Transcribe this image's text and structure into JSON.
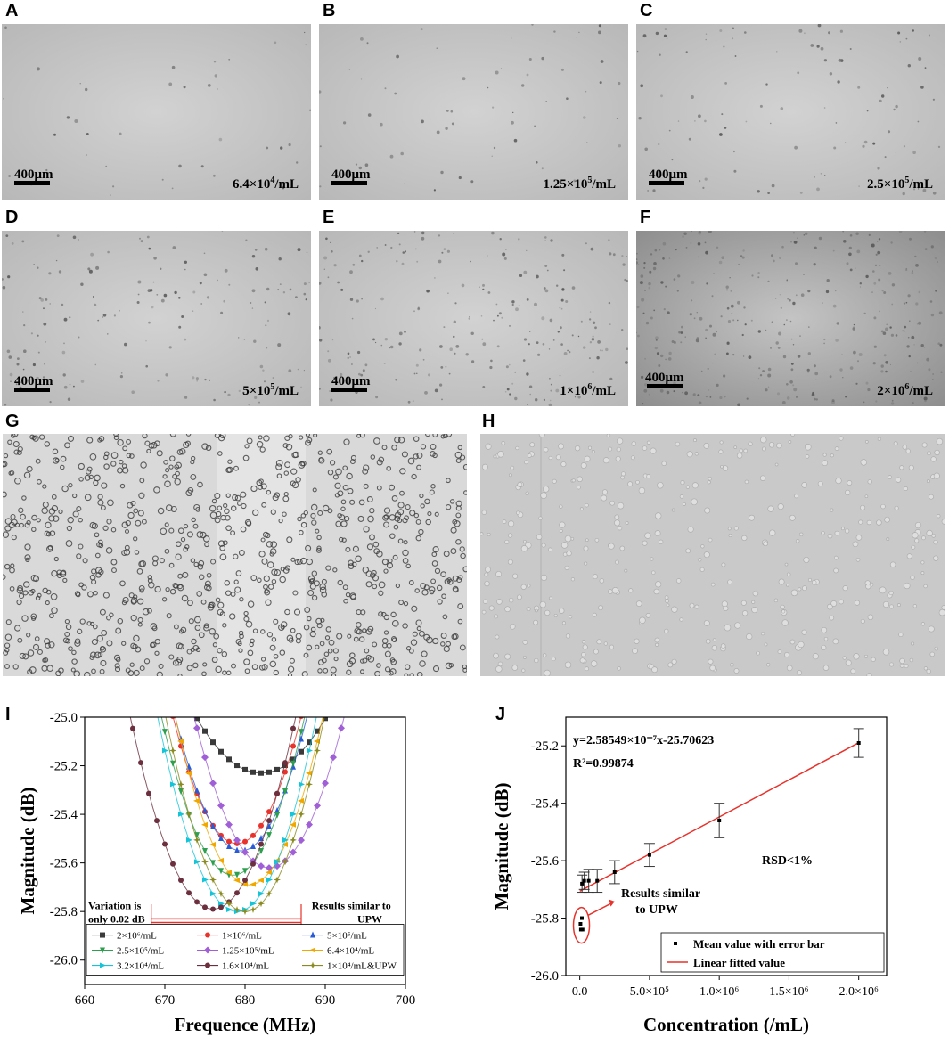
{
  "panels": {
    "A": {
      "label": "A",
      "scale": "400μm",
      "conc_base": "6.4×10",
      "conc_exp": "4",
      "conc_unit": "/mL"
    },
    "B": {
      "label": "B",
      "scale": "400μm",
      "conc_base": "1.25×10",
      "conc_exp": "5",
      "conc_unit": "/mL"
    },
    "C": {
      "label": "C",
      "scale": "400μm",
      "conc_base": "2.5×10",
      "conc_exp": "5",
      "conc_unit": "/mL"
    },
    "D": {
      "label": "D",
      "scale": "400μm",
      "conc_base": "5×10",
      "conc_exp": "5",
      "conc_unit": "/mL"
    },
    "E": {
      "label": "E",
      "scale": "400μm",
      "conc_base": "1×10",
      "conc_exp": "6",
      "conc_unit": "/mL"
    },
    "F": {
      "label": "F",
      "scale": "400μm",
      "conc_base": "2×10",
      "conc_exp": "6",
      "conc_unit": "/mL"
    },
    "G": {
      "label": "G"
    },
    "H": {
      "label": "H"
    },
    "I": {
      "label": "I"
    },
    "J": {
      "label": "J"
    }
  },
  "chart_data": [
    {
      "type": "line",
      "panel": "I",
      "xlabel": "Frequence (MHz)",
      "ylabel": "Magnitude (dB)",
      "xlim": [
        660,
        700
      ],
      "ylim": [
        -26.1,
        -25.0
      ],
      "xticks": [
        "660",
        "670",
        "680",
        "690",
        "700"
      ],
      "yticks": [
        "-25.0",
        "-25.2",
        "-25.4",
        "-25.6",
        "-25.8",
        "-26.0"
      ],
      "annotations": {
        "left": "Variation is only 0.02 dB",
        "right": "Results similar to UPW"
      },
      "series": [
        {
          "name": "2×10⁶/mL",
          "color": "#3a3a3a",
          "marker": "square",
          "x0": 682,
          "min": -25.23,
          "width": 12.5,
          "xrange": [
            668,
            695
          ]
        },
        {
          "name": "1×10⁶/mL",
          "color": "#e8322b",
          "marker": "circle",
          "x0": 679,
          "min": -25.52,
          "width": 8.2,
          "xrange": [
            663,
            695
          ]
        },
        {
          "name": "5×10⁵/mL",
          "color": "#2a5bd7",
          "marker": "triangle",
          "x0": 679.5,
          "min": -25.55,
          "width": 8.2,
          "xrange": [
            663,
            695
          ]
        },
        {
          "name": "2.5×10⁵/mL",
          "color": "#2e9e4f",
          "marker": "triangle-down",
          "x0": 678.5,
          "min": -25.65,
          "width": 8.2,
          "xrange": [
            662,
            695
          ]
        },
        {
          "name": "1.25×10⁵/mL",
          "color": "#a05fd6",
          "marker": "diamond",
          "x0": 683,
          "min": -25.62,
          "width": 8.8,
          "xrange": [
            665,
            698
          ]
        },
        {
          "name": "6.4×10⁴/mL",
          "color": "#f0a800",
          "marker": "triangle-left",
          "x0": 680.5,
          "min": -25.69,
          "width": 8.2,
          "xrange": [
            663,
            697
          ]
        },
        {
          "name": "3.2×10⁴/mL",
          "color": "#16c4d8",
          "marker": "triangle-right",
          "x0": 679,
          "min": -25.8,
          "width": 8.2,
          "xrange": [
            661,
            696
          ]
        },
        {
          "name": "1.6×10⁴/mL",
          "color": "#6b2f3e",
          "marker": "hexagon",
          "x0": 676,
          "min": -25.79,
          "width": 8.6,
          "xrange": [
            660,
            693
          ]
        },
        {
          "name": "1×10⁴/mL&UPW",
          "color": "#8a8a20",
          "marker": "star",
          "x0": 680,
          "min": -25.8,
          "width": 8.2,
          "xrange": [
            661,
            696
          ]
        }
      ]
    },
    {
      "type": "scatter",
      "panel": "J",
      "xlabel": "Concentration (/mL)",
      "ylabel": "Magnitude (dB)",
      "xlim": [
        -100000,
        2200000
      ],
      "ylim": [
        -26.0,
        -25.1
      ],
      "xticks": [
        0,
        500000,
        1000000,
        1500000,
        2000000
      ],
      "xtick_labels": [
        "0.0",
        "5.0×10⁵",
        "1.0×10⁶",
        "1.5×10⁶",
        "2.0×10⁶"
      ],
      "yticks": [
        "-25.2",
        "-25.4",
        "-25.6",
        "-25.8",
        "-26.0"
      ],
      "equation": "y=2.58549×10⁻⁷x-25.70623",
      "r2": "R²=0.99874",
      "rsd": "RSD<1%",
      "callout": "Results similar to UPW",
      "legend": [
        "Mean value with error bar",
        "Linear fitted value"
      ],
      "points": [
        {
          "x": 16000,
          "y": -25.68,
          "err": 0.03
        },
        {
          "x": 32000,
          "y": -25.67,
          "err": 0.03
        },
        {
          "x": 64000,
          "y": -25.67,
          "err": 0.04
        },
        {
          "x": 125000,
          "y": -25.67,
          "err": 0.04
        },
        {
          "x": 250000,
          "y": -25.64,
          "err": 0.04
        },
        {
          "x": 500000,
          "y": -25.58,
          "err": 0.04
        },
        {
          "x": 1000000,
          "y": -25.46,
          "err": 0.06
        },
        {
          "x": 2000000,
          "y": -25.19,
          "err": 0.05
        }
      ],
      "upw_points": [
        {
          "x": 5000,
          "y": -25.82
        },
        {
          "x": 15000,
          "y": -25.8
        },
        {
          "x": 8000,
          "y": -25.84
        },
        {
          "x": 20000,
          "y": -25.84
        }
      ],
      "fit": {
        "slope": 2.58549e-07,
        "intercept": -25.70623
      }
    }
  ]
}
